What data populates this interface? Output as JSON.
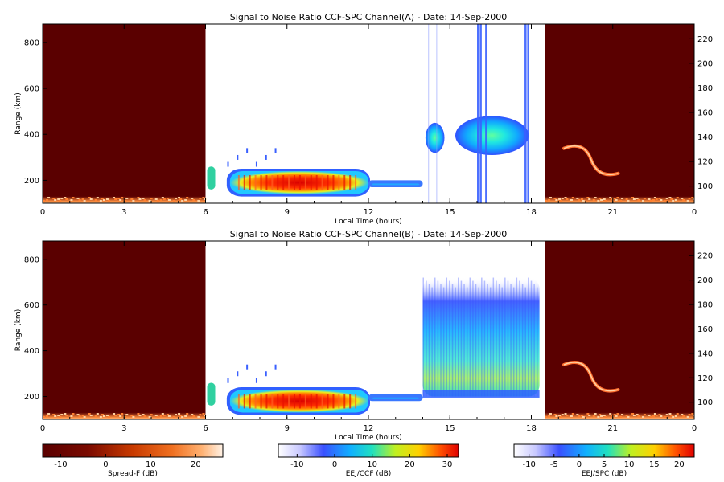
{
  "chart_data": [
    {
      "type": "heatmap",
      "title": "Signal to Noise Ratio CCF-SPC Channel(A) - Date: 14-Sep-2000",
      "xlabel": "Local Time (hours)",
      "ylabel": "Range (km)",
      "x_ticks": [
        "0",
        "3",
        "6",
        "9",
        "12",
        "15",
        "18",
        "21",
        "0"
      ],
      "x_tick_hours": [
        0,
        3,
        6,
        9,
        12,
        15,
        18,
        21,
        24
      ],
      "xlim": [
        0,
        24
      ],
      "ylim": [
        100,
        880
      ],
      "y_ticks": [
        200,
        400,
        600,
        800
      ],
      "y2lim": [
        86,
        232
      ],
      "y2_ticks": [
        100,
        120,
        140,
        160,
        180,
        200,
        220
      ],
      "regions": [
        {
          "name": "Spread-F",
          "x": [
            0,
            6
          ],
          "level_db": -14,
          "echo_range_km": [
            100,
            130
          ],
          "echo_db": 15
        },
        {
          "name": "CCF day echo",
          "x": [
            6.9,
            12
          ],
          "range_km": [
            140,
            240
          ],
          "peak_db": 30
        },
        {
          "name": "EEJ/CCF weak",
          "x": [
            12,
            14
          ],
          "range_km": [
            170,
            200
          ],
          "peak_db": 5
        },
        {
          "name": "EEJ/SPC blob",
          "x": [
            14.1,
            14.8
          ],
          "range_km": [
            320,
            450
          ],
          "peak_db": 12
        },
        {
          "name": "EEJ/SPC blob",
          "x": [
            15.2,
            17.9
          ],
          "range_km": [
            310,
            480
          ],
          "peak_db": 14
        },
        {
          "name": "Spread-F",
          "x": [
            18.5,
            24
          ],
          "level_db": -14,
          "echo_range_km": [
            100,
            130
          ],
          "echo_db": 15
        },
        {
          "name": "Spread-F plume",
          "x": [
            19.2,
            21.2
          ],
          "range_km": [
            230,
            360
          ],
          "peak_db": 12
        }
      ]
    },
    {
      "type": "heatmap",
      "title": "Signal to Noise Ratio CCF-SPC Channel(B) - Date: 14-Sep-2000",
      "xlabel": "Local Time (hours)",
      "ylabel": "Range (km)",
      "x_ticks": [
        "0",
        "3",
        "6",
        "9",
        "12",
        "15",
        "18",
        "21",
        "0"
      ],
      "x_tick_hours": [
        0,
        3,
        6,
        9,
        12,
        15,
        18,
        21,
        24
      ],
      "xlim": [
        0,
        24
      ],
      "ylim": [
        100,
        880
      ],
      "y_ticks": [
        200,
        400,
        600,
        800
      ],
      "y2lim": [
        86,
        232
      ],
      "y2_ticks": [
        100,
        120,
        140,
        160,
        180,
        200,
        220
      ],
      "regions": [
        {
          "name": "Spread-F",
          "x": [
            0,
            6
          ],
          "level_db": -14,
          "echo_range_km": [
            100,
            130
          ],
          "echo_db": 15
        },
        {
          "name": "CCF day echo",
          "x": [
            6.9,
            12
          ],
          "range_km": [
            130,
            230
          ],
          "peak_db": 30
        },
        {
          "name": "EEJ/CCF weak",
          "x": [
            12,
            14
          ],
          "range_km": [
            180,
            210
          ],
          "peak_db": 5
        },
        {
          "name": "EEJ/SPC plume",
          "x": [
            14,
            18.3
          ],
          "range_km": [
            200,
            720
          ],
          "peak_db": 12
        },
        {
          "name": "Spread-F",
          "x": [
            18.5,
            24
          ],
          "level_db": -14,
          "echo_range_km": [
            100,
            130
          ],
          "echo_db": 15
        },
        {
          "name": "Spread-F plume",
          "x": [
            19.2,
            21.2
          ],
          "range_km": [
            230,
            360
          ],
          "peak_db": 12
        }
      ]
    }
  ],
  "colorbars": [
    {
      "label": "Spread-F (dB)",
      "ticks": [
        "-10",
        "0",
        "10",
        "20"
      ],
      "range": [
        -14,
        26
      ],
      "palette": "heat"
    },
    {
      "label": "EEJ/CCF (dB)",
      "ticks": [
        "-10",
        "0",
        "10",
        "20",
        "30"
      ],
      "range": [
        -15,
        33
      ],
      "palette": "rainbow"
    },
    {
      "label": "EEJ/SPC (dB)",
      "ticks": [
        "-10",
        "-5",
        "0",
        "5",
        "10",
        "15",
        "20"
      ],
      "range": [
        -13,
        23
      ],
      "palette": "rainbow"
    }
  ],
  "colors": {
    "background_mask": "#5a0000",
    "axis": "#000000"
  }
}
